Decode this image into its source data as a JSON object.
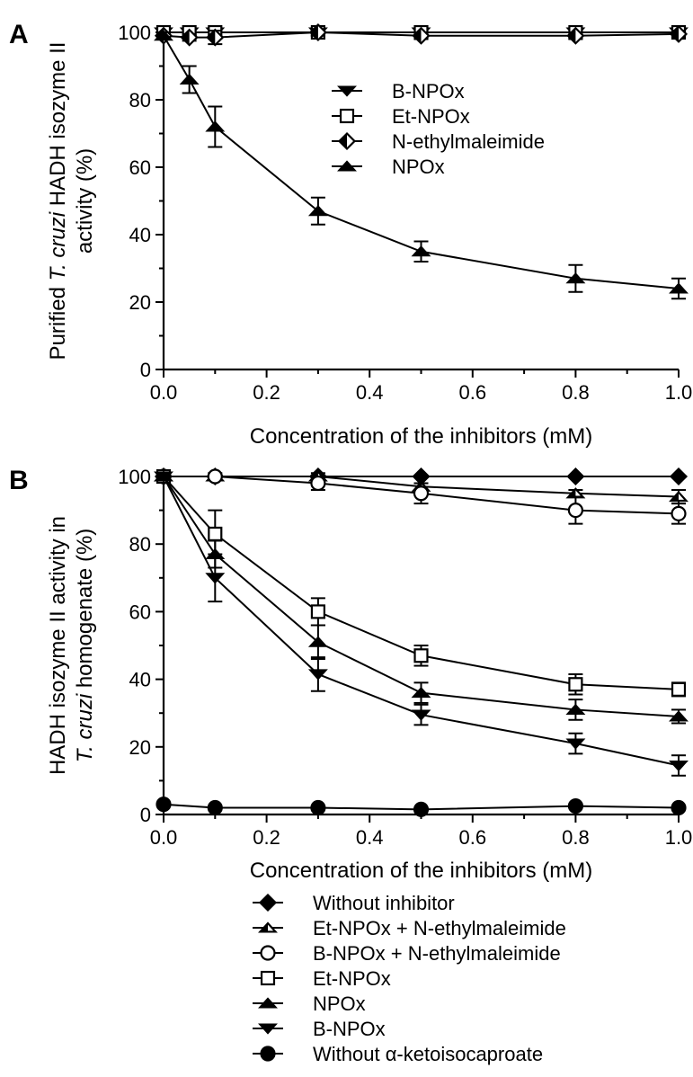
{
  "chart_data": [
    {
      "type": "line",
      "panel_label": "A",
      "xlabel": "Concentration of the inhibitors (mM)",
      "ylabel_lines": [
        [
          {
            "t": "Purified "
          },
          {
            "t": "T. cruzi",
            "i": true
          },
          {
            "t": " HADH isozyme II"
          }
        ],
        [
          {
            "t": "activity (%)"
          }
        ]
      ],
      "xlim": [
        0,
        1
      ],
      "ylim": [
        0,
        100
      ],
      "xticks": [
        "0.0",
        "0.2",
        "0.4",
        "0.6",
        "0.8",
        "1.0"
      ],
      "yticks": [
        "0",
        "20",
        "40",
        "60",
        "80",
        "100"
      ],
      "legend_position": "upper-right",
      "series": [
        {
          "name": "B-NPOx",
          "marker": "triangle-down",
          "fill": "black",
          "x": [
            0,
            0.05,
            0.1,
            0.3,
            0.5,
            0.8,
            1.0
          ],
          "y": [
            100,
            100,
            100,
            100,
            100,
            100,
            100
          ],
          "err": [
            1,
            1,
            1,
            1,
            1,
            1,
            1
          ]
        },
        {
          "name": "Et-NPOx",
          "marker": "square",
          "fill": "white",
          "x": [
            0,
            0.05,
            0.1,
            0.3,
            0.5,
            0.8,
            1.0
          ],
          "y": [
            100,
            100,
            100,
            100,
            100,
            100,
            100
          ],
          "err": [
            1,
            1,
            1,
            1,
            1,
            1,
            1
          ]
        },
        {
          "name": "N-ethylmaleimide",
          "marker": "diamond-half",
          "fill": "half",
          "x": [
            0,
            0.05,
            0.1,
            0.3,
            0.5,
            0.8,
            1.0
          ],
          "y": [
            99,
            98.5,
            98.5,
            100,
            99,
            99,
            99.5
          ],
          "err": [
            1,
            1,
            2,
            1,
            1,
            1,
            1
          ]
        },
        {
          "name": "NPOx",
          "marker": "triangle-up",
          "fill": "black",
          "x": [
            0,
            0.05,
            0.1,
            0.3,
            0.5,
            0.8,
            1.0
          ],
          "y": [
            99,
            86,
            72,
            47,
            35,
            27,
            24
          ],
          "err": [
            1,
            4,
            6,
            4,
            3,
            4,
            3
          ]
        }
      ]
    },
    {
      "type": "line",
      "panel_label": "B",
      "xlabel": "Concentration of the inhibitors (mM)",
      "ylabel_lines": [
        [
          {
            "t": "HADH isozyme II activity in"
          }
        ],
        [
          {
            "t": "T. cruzi",
            "i": true
          },
          {
            "t": " homogenate (%)"
          }
        ]
      ],
      "xlim": [
        0,
        1
      ],
      "ylim": [
        0,
        100
      ],
      "xticks": [
        "0.0",
        "0.2",
        "0.4",
        "0.6",
        "0.8",
        "1.0"
      ],
      "yticks": [
        "0",
        "20",
        "40",
        "60",
        "80",
        "100"
      ],
      "legend_position": "below",
      "series": [
        {
          "name": "Without inhibitor",
          "marker": "diamond",
          "fill": "black",
          "x": [
            0,
            0.1,
            0.3,
            0.5,
            0.8,
            1.0
          ],
          "y": [
            100,
            100,
            100,
            100,
            100,
            100
          ],
          "err": [
            0,
            0,
            0,
            0,
            0,
            0
          ]
        },
        {
          "name": "Et-NPOx + N-ethylmaleimide",
          "marker": "triangle-half",
          "fill": "half",
          "x": [
            0,
            0.1,
            0.3,
            0.5,
            0.8,
            1.0
          ],
          "y": [
            100,
            100,
            100,
            97,
            95,
            94
          ],
          "err": [
            0,
            1,
            1,
            1,
            1,
            2
          ]
        },
        {
          "name": "B-NPOx + N-ethylmaleimide",
          "marker": "circle",
          "fill": "white",
          "x": [
            0,
            0.1,
            0.3,
            0.5,
            0.8,
            1.0
          ],
          "y": [
            100,
            100,
            98,
            95,
            90,
            89
          ],
          "err": [
            0,
            0,
            2,
            3,
            4,
            3
          ]
        },
        {
          "name": "Et-NPOx",
          "marker": "square",
          "fill": "white",
          "x": [
            0,
            0.1,
            0.3,
            0.5,
            0.8,
            1.0
          ],
          "y": [
            100,
            83,
            60,
            47,
            38.5,
            37
          ],
          "err": [
            0,
            7,
            4,
            3,
            3,
            2
          ]
        },
        {
          "name": "NPOx",
          "marker": "triangle-up",
          "fill": "black",
          "x": [
            0,
            0.1,
            0.3,
            0.5,
            0.8,
            1.0
          ],
          "y": [
            100,
            77,
            51,
            36,
            31,
            29
          ],
          "err": [
            0,
            4,
            5,
            3,
            3,
            2
          ]
        },
        {
          "name": "B-NPOx",
          "marker": "triangle-down",
          "fill": "black",
          "x": [
            0,
            0.1,
            0.3,
            0.5,
            0.8,
            1.0
          ],
          "y": [
            100,
            70,
            41.5,
            29.5,
            21,
            14.5
          ],
          "err": [
            0,
            7,
            5,
            3,
            3,
            3
          ]
        },
        {
          "name": "Without α-ketoisocaproate",
          "marker": "circle",
          "fill": "black",
          "x": [
            0,
            0.1,
            0.3,
            0.5,
            0.8,
            1.0
          ],
          "y": [
            3,
            2,
            2,
            1.5,
            2.5,
            2
          ],
          "err": [
            0,
            0,
            0,
            0,
            0,
            0
          ]
        }
      ]
    }
  ]
}
